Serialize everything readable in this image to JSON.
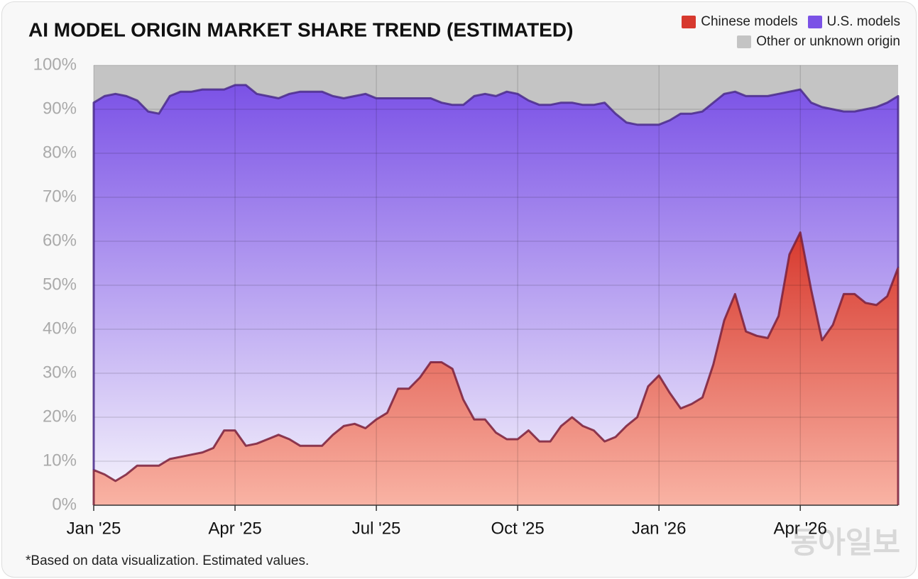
{
  "chart_data": {
    "type": "stacked-area",
    "title": "AI MODEL ORIGIN MARKET SHARE TREND (ESTIMATED)",
    "footnote": "*Based on data visualization. Estimated values.",
    "watermark": "동아일보",
    "categories": [
      "Jan '25",
      null,
      null,
      null,
      null,
      null,
      null,
      null,
      null,
      null,
      null,
      null,
      null,
      "Apr '25",
      null,
      null,
      null,
      null,
      null,
      null,
      null,
      null,
      null,
      null,
      null,
      null,
      "Jul '25",
      null,
      null,
      null,
      null,
      null,
      null,
      null,
      null,
      null,
      null,
      null,
      null,
      "Oct '25",
      null,
      null,
      null,
      null,
      null,
      null,
      null,
      null,
      null,
      null,
      null,
      null,
      "Jan '26",
      null,
      null,
      null,
      null,
      null,
      null,
      null,
      null,
      null,
      null,
      null,
      null,
      "Apr '26",
      null,
      null,
      null,
      null,
      null,
      null,
      null,
      null,
      null
    ],
    "series": [
      {
        "name": "Chinese models",
        "color": "#d7392e",
        "values": [
          8,
          7,
          5.5,
          7,
          9,
          9,
          9,
          10.5,
          11,
          11.5,
          12,
          13,
          17,
          17,
          13.5,
          14,
          15,
          16,
          15,
          13.5,
          13.5,
          13.5,
          16,
          18,
          18.5,
          17.5,
          19.5,
          21,
          26.5,
          26.5,
          29,
          32.5,
          32.5,
          31,
          24,
          19.5,
          19.5,
          16.5,
          15,
          15,
          17,
          14.5,
          14.5,
          18,
          20,
          18,
          17,
          14.5,
          15.5,
          18,
          20,
          27,
          29.5,
          25.5,
          22,
          23,
          24.5,
          32,
          42,
          48,
          39.5,
          38.5,
          38,
          43,
          57,
          62,
          49,
          37.5,
          41,
          48,
          48,
          46,
          45.5,
          47.5,
          54
        ]
      },
      {
        "name": "U.S. models",
        "color": "#7b52e6",
        "values": [
          83.5,
          86,
          88,
          86,
          83,
          80.5,
          80,
          82.5,
          83,
          82.5,
          82.5,
          81.5,
          77.5,
          78.5,
          82,
          79.5,
          78,
          76.5,
          78.5,
          80.5,
          80.5,
          80.5,
          77,
          74.5,
          74.5,
          76,
          73,
          71.5,
          66,
          66,
          63.5,
          60,
          59,
          60,
          67,
          73.5,
          74,
          76.5,
          79,
          78.5,
          75,
          76.5,
          76.5,
          73.5,
          71.5,
          73,
          74,
          77,
          73.5,
          69,
          66.5,
          59.5,
          57,
          62,
          67,
          66,
          65,
          59.5,
          51.5,
          46,
          53.5,
          54.5,
          55,
          50.5,
          37,
          32.5,
          42.5,
          53,
          49,
          41.5,
          41.5,
          44,
          45,
          44,
          39
        ]
      },
      {
        "name": "Other or unknown origin",
        "color": "#c4c4c4",
        "values": [
          8.5,
          7,
          6.5,
          7,
          8,
          10.5,
          11,
          7,
          6,
          6,
          5.5,
          5.5,
          5.5,
          4.5,
          4.5,
          6.5,
          7,
          7.5,
          6.5,
          6,
          6,
          6,
          7,
          7.5,
          7,
          6.5,
          7.5,
          7.5,
          7.5,
          7.5,
          7.5,
          7.5,
          8.5,
          9,
          9,
          7,
          6.5,
          7,
          6,
          6.5,
          8,
          9,
          9,
          8.5,
          8.5,
          9,
          9,
          8.5,
          11,
          13,
          13.5,
          13.5,
          13.5,
          12.5,
          11,
          11,
          10.5,
          8.5,
          6.5,
          6,
          7,
          7,
          7,
          6.5,
          6,
          5.5,
          8.5,
          9.5,
          10,
          10.5,
          10.5,
          10,
          9.5,
          8.5,
          7
        ]
      }
    ],
    "ylim": [
      0,
      100
    ],
    "yticks": [
      {
        "value": 0,
        "label": "0%"
      },
      {
        "value": 10,
        "label": "10%"
      },
      {
        "value": 20,
        "label": "20%"
      },
      {
        "value": 30,
        "label": "30%"
      },
      {
        "value": 40,
        "label": "40%"
      },
      {
        "value": 50,
        "label": "50%"
      },
      {
        "value": 60,
        "label": "60%"
      },
      {
        "value": 70,
        "label": "70%"
      },
      {
        "value": 80,
        "label": "80%"
      },
      {
        "value": 90,
        "label": "90%"
      },
      {
        "value": 100,
        "label": "100%"
      }
    ],
    "grid": true
  }
}
